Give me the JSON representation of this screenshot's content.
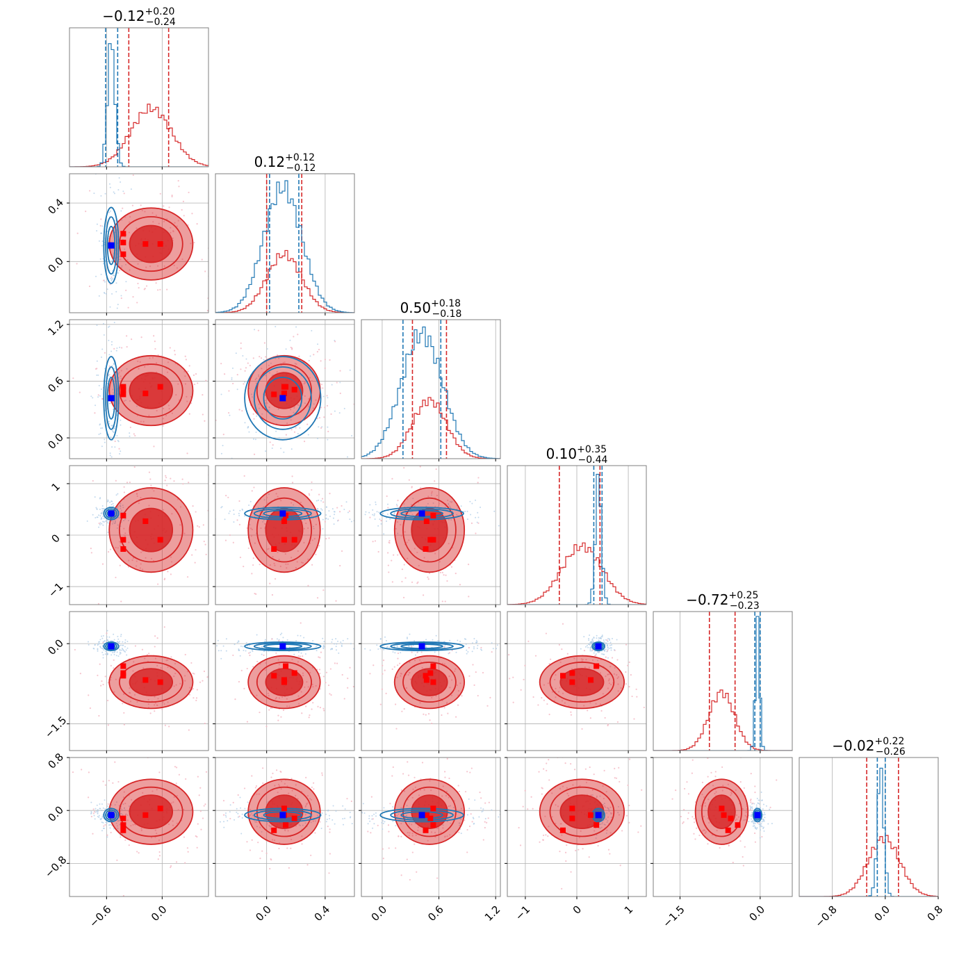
{
  "chart_data": {
    "type": "corner",
    "title": "",
    "colors": {
      "model_a": "#d62728",
      "model_b": "#1f77b4",
      "truth_a": "#ff0000",
      "truth_b": "#0000ff"
    },
    "parameters": [
      {
        "title_median": "−0.12",
        "title_plus": "+0.20",
        "title_minus": "−0.24",
        "range": [
          -1.0,
          0.5
        ],
        "ticks": [
          -0.6,
          0.0
        ],
        "tick_labels": [
          "−0.6",
          "0.0"
        ],
        "red": {
          "q16": -0.36,
          "q84": 0.07
        },
        "blue": {
          "q16": -0.61,
          "q84": -0.48
        }
      },
      {
        "title_median": "0.12",
        "title_plus": "+0.12",
        "title_minus": "−0.12",
        "range": [
          -0.35,
          0.6
        ],
        "ticks": [
          0.0,
          0.4
        ],
        "tick_labels": [
          "0.0",
          "0.4"
        ],
        "red": {
          "q16": 0.0,
          "q84": 0.24
        },
        "blue": {
          "q16": 0.02,
          "q84": 0.22
        }
      },
      {
        "title_median": "0.50",
        "title_plus": "+0.18",
        "title_minus": "−0.18",
        "range": [
          -0.22,
          1.25
        ],
        "ticks": [
          0.0,
          0.6,
          1.2
        ],
        "tick_labels": [
          "0.0",
          "0.6",
          "1.2"
        ],
        "red": {
          "q16": 0.32,
          "q84": 0.68
        },
        "blue": {
          "q16": 0.22,
          "q84": 0.62
        }
      },
      {
        "title_median": "0.10",
        "title_plus": "+0.35",
        "title_minus": "−0.44",
        "range": [
          -1.35,
          1.35
        ],
        "ticks": [
          -1.0,
          0.0,
          1.0
        ],
        "tick_labels": [
          "−1",
          "0",
          "1"
        ],
        "red": {
          "q16": -0.34,
          "q84": 0.45
        },
        "blue": {
          "q16": 0.33,
          "q84": 0.49
        }
      },
      {
        "title_median": "−0.72",
        "title_plus": "+0.25",
        "title_minus": "−0.23",
        "range": [
          -2.0,
          0.6
        ],
        "ticks": [
          -1.5,
          0.0
        ],
        "tick_labels": [
          "−1.5",
          "0.0"
        ],
        "red": {
          "q16": -0.95,
          "q84": -0.47
        },
        "blue": {
          "q16": -0.1,
          "q84": 0.0
        }
      },
      {
        "title_median": "−0.02",
        "title_plus": "+0.22",
        "title_minus": "−0.26",
        "range": [
          -1.3,
          0.8
        ],
        "ticks": [
          -0.8,
          0.0,
          0.8
        ],
        "tick_labels": [
          "−0.8",
          "0.0",
          "0.8"
        ],
        "red": {
          "q16": -0.28,
          "q84": 0.2
        },
        "blue": {
          "q16": -0.12,
          "q84": 0.0
        }
      }
    ],
    "red_posterior": {
      "mean": [
        -0.12,
        0.12,
        0.5,
        0.1,
        -0.72,
        -0.02
      ],
      "std": [
        0.22,
        0.12,
        0.18,
        0.4,
        0.24,
        0.24
      ]
    },
    "blue_posterior": {
      "mean": [
        -0.55,
        0.11,
        0.42,
        0.42,
        -0.05,
        -0.07
      ],
      "std": [
        0.04,
        0.13,
        0.22,
        0.06,
        0.04,
        0.05
      ]
    },
    "red_markers": [
      [
        -0.42,
        0.05,
        0.46,
        -0.27,
        -0.6,
        -0.3
      ],
      [
        -0.42,
        0.13,
        0.54,
        0.38,
        -0.42,
        -0.22
      ],
      [
        -0.18,
        0.12,
        0.47,
        0.27,
        -0.68,
        -0.07
      ],
      [
        -0.02,
        0.12,
        0.54,
        -0.09,
        -0.72,
        0.03
      ],
      [
        -0.42,
        0.19,
        0.51,
        -0.09,
        -0.55,
        -0.12
      ]
    ],
    "blue_marker": [
      -0.55,
      0.11,
      0.42,
      0.42,
      -0.05,
      -0.07
    ]
  }
}
